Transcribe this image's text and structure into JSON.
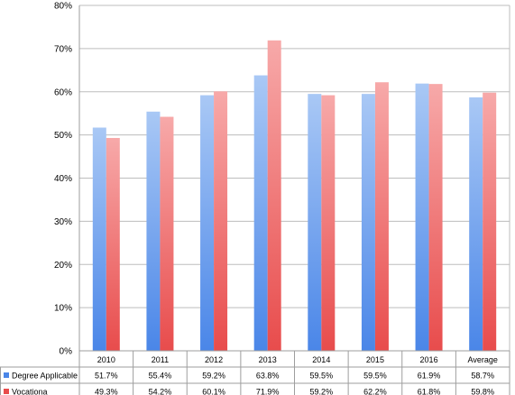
{
  "chart_data": {
    "type": "bar",
    "categories": [
      "2010",
      "2011",
      "2012",
      "2013",
      "2014",
      "2015",
      "2016",
      "Average"
    ],
    "series": [
      {
        "name": "Degree Applicable",
        "color": "#4a86e8",
        "values": [
          51.7,
          55.4,
          59.2,
          63.8,
          59.5,
          59.5,
          61.9,
          58.7
        ],
        "labels": [
          "51.7%",
          "55.4%",
          "59.2%",
          "63.8%",
          "59.5%",
          "59.5%",
          "61.9%",
          "58.7%"
        ]
      },
      {
        "name": "Vocationa",
        "color": "#e84c4c",
        "values": [
          49.3,
          54.2,
          60.1,
          71.9,
          59.2,
          62.2,
          61.8,
          59.8
        ],
        "labels": [
          "49.3%",
          "54.2%",
          "60.1%",
          "71.9%",
          "59.2%",
          "62.2%",
          "61.8%",
          "59.8%"
        ]
      }
    ],
    "ylim": [
      0,
      80
    ],
    "yticks": [
      "0%",
      "10%",
      "20%",
      "30%",
      "40%",
      "50%",
      "60%",
      "70%",
      "80%"
    ],
    "grid": true,
    "legend": "data-table",
    "title": "",
    "xlabel": "",
    "ylabel": ""
  }
}
